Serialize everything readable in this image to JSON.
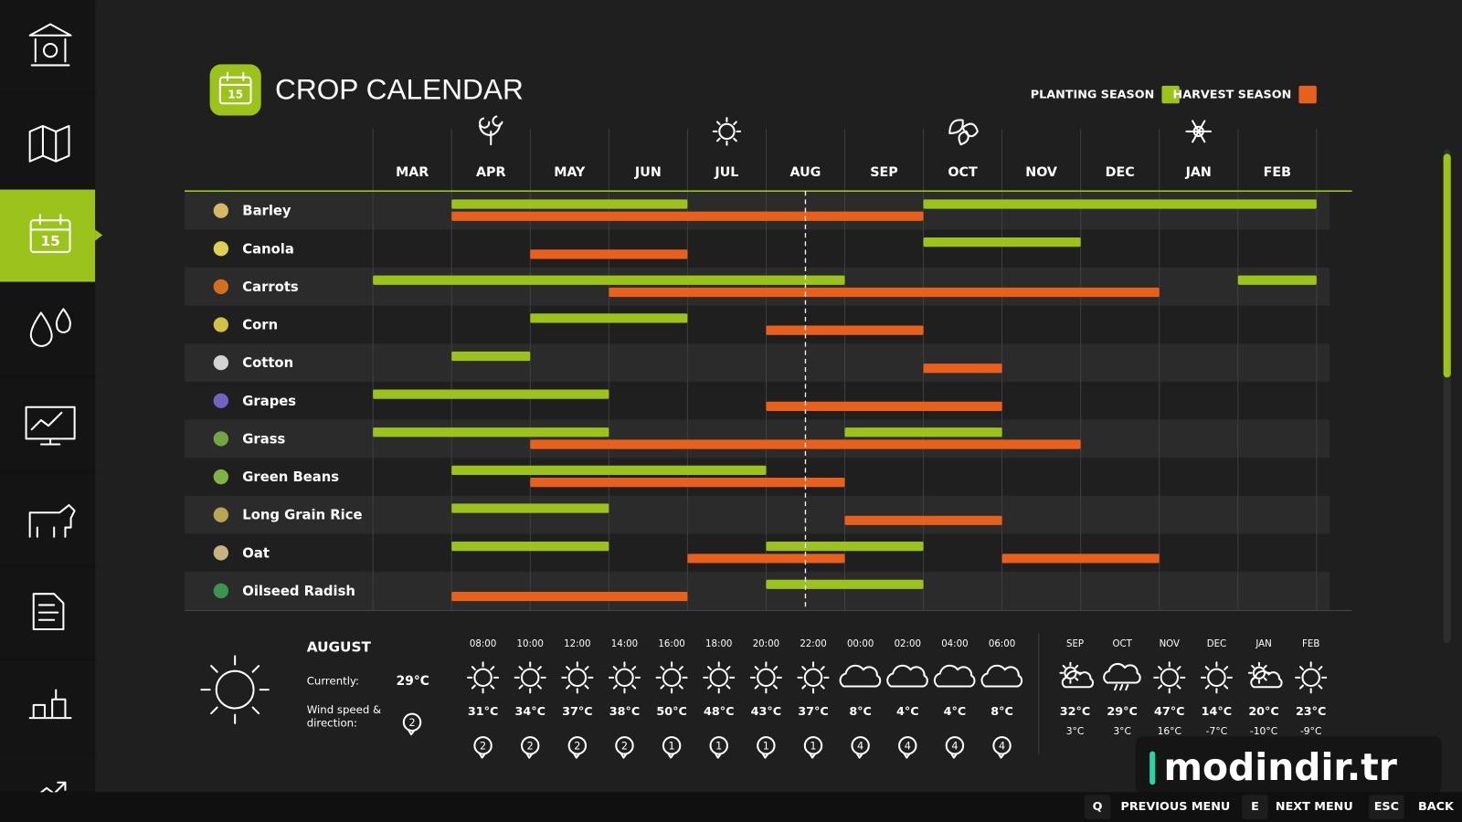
{
  "sidebar": {
    "calendar_icon_label": "15"
  },
  "header": {
    "title": "CROP CALENDAR",
    "icon_label": "15"
  },
  "legend": [
    {
      "label": "PLANTING SEASON",
      "color": "#9bc31c"
    },
    {
      "label": "HARVEST SEASON",
      "color": "#e8601c"
    }
  ],
  "calendar": {
    "months": [
      "MAR",
      "APR",
      "MAY",
      "JUN",
      "JUL",
      "AUG",
      "SEP",
      "OCT",
      "NOV",
      "DEC",
      "JAN",
      "FEB"
    ],
    "current_position": 5.5,
    "season_icons": [
      {
        "column": 1,
        "icon": "flower"
      },
      {
        "column": 4,
        "icon": "sun"
      },
      {
        "column": 7,
        "icon": "leaves"
      },
      {
        "column": 10,
        "icon": "snow"
      }
    ],
    "crops": [
      {
        "name": "Barley",
        "icon_color": "#e8c66a",
        "planting": [
          [
            1,
            4
          ],
          [
            7,
            12
          ]
        ],
        "harvest": [
          [
            1,
            7
          ]
        ]
      },
      {
        "name": "Canola",
        "icon_color": "#f2e35a",
        "planting": [
          [
            7,
            9
          ]
        ],
        "harvest": [
          [
            2,
            4
          ]
        ]
      },
      {
        "name": "Carrots",
        "icon_color": "#e8761c",
        "planting": [
          [
            0,
            6
          ],
          [
            11,
            12
          ]
        ],
        "harvest": [
          [
            3,
            10
          ]
        ]
      },
      {
        "name": "Corn",
        "icon_color": "#e3d44a",
        "planting": [
          [
            2,
            4
          ]
        ],
        "harvest": [
          [
            5,
            7
          ]
        ]
      },
      {
        "name": "Cotton",
        "icon_color": "#e6e6e6",
        "planting": [
          [
            1,
            2
          ]
        ],
        "harvest": [
          [
            7,
            8
          ]
        ]
      },
      {
        "name": "Grapes",
        "icon_color": "#7a6ad6",
        "planting": [
          [
            0,
            3
          ]
        ],
        "harvest": [
          [
            5,
            8
          ]
        ]
      },
      {
        "name": "Grass",
        "icon_color": "#7cb342",
        "planting": [
          [
            0,
            3
          ],
          [
            6,
            8
          ]
        ],
        "harvest": [
          [
            2,
            9
          ]
        ]
      },
      {
        "name": "Green Beans",
        "icon_color": "#8bc34a",
        "planting": [
          [
            1,
            5
          ]
        ],
        "harvest": [
          [
            2,
            6
          ]
        ]
      },
      {
        "name": "Long Grain Rice",
        "icon_color": "#c9b458",
        "planting": [
          [
            1,
            3
          ]
        ],
        "harvest": [
          [
            6,
            8
          ]
        ]
      },
      {
        "name": "Oat",
        "icon_color": "#d8c48a",
        "planting": [
          [
            1,
            3
          ],
          [
            5,
            7
          ]
        ],
        "harvest": [
          [
            4,
            6
          ],
          [
            8,
            10
          ]
        ]
      },
      {
        "name": "Oilseed Radish",
        "icon_color": "#3fa055",
        "planting": [
          [
            5,
            7
          ]
        ],
        "harvest": [
          [
            1,
            4
          ]
        ]
      }
    ]
  },
  "weather": {
    "month": "AUGUST",
    "current_label": "Currently:",
    "current_temp": "29°C",
    "wind_label": [
      "Wind speed &",
      "direction:"
    ],
    "current_wind": "2",
    "current_icon": "sun",
    "hourly": [
      {
        "time": "08:00",
        "icon": "sun",
        "temp": "31°C",
        "wind": "2"
      },
      {
        "time": "10:00",
        "icon": "sun",
        "temp": "34°C",
        "wind": "2"
      },
      {
        "time": "12:00",
        "icon": "sun",
        "temp": "37°C",
        "wind": "2"
      },
      {
        "time": "14:00",
        "icon": "sun",
        "temp": "38°C",
        "wind": "2"
      },
      {
        "time": "16:00",
        "icon": "sun",
        "temp": "50°C",
        "wind": "1"
      },
      {
        "time": "18:00",
        "icon": "sun",
        "temp": "48°C",
        "wind": "1"
      },
      {
        "time": "20:00",
        "icon": "sun",
        "temp": "43°C",
        "wind": "1"
      },
      {
        "time": "22:00",
        "icon": "sun",
        "temp": "37°C",
        "wind": "1"
      },
      {
        "time": "00:00",
        "icon": "cloud",
        "temp": "8°C",
        "wind": "4"
      },
      {
        "time": "02:00",
        "icon": "cloud",
        "temp": "4°C",
        "wind": "4"
      },
      {
        "time": "04:00",
        "icon": "cloud",
        "temp": "4°C",
        "wind": "4"
      },
      {
        "time": "06:00",
        "icon": "cloud",
        "temp": "8°C",
        "wind": "4"
      }
    ],
    "monthly": [
      {
        "month": "SEP",
        "icon": "partly",
        "high": "32°C",
        "low": "3°C"
      },
      {
        "month": "OCT",
        "icon": "rain",
        "high": "29°C",
        "low": "3°C"
      },
      {
        "month": "NOV",
        "icon": "sun",
        "high": "47°C",
        "low": "16°C"
      },
      {
        "month": "DEC",
        "icon": "sun",
        "high": "14°C",
        "low": "-7°C"
      },
      {
        "month": "JAN",
        "icon": "partly",
        "high": "20°C",
        "low": "-10°C"
      },
      {
        "month": "FEB",
        "icon": "sun",
        "high": "23°C",
        "low": "-9°C"
      }
    ]
  },
  "footer": {
    "controls": [
      {
        "key": "Q",
        "label": "PREVIOUS MENU"
      },
      {
        "key": "E",
        "label": "NEXT MENU"
      },
      {
        "key": "ESC",
        "label": "BACK"
      }
    ]
  },
  "watermark": "modindir.tr"
}
